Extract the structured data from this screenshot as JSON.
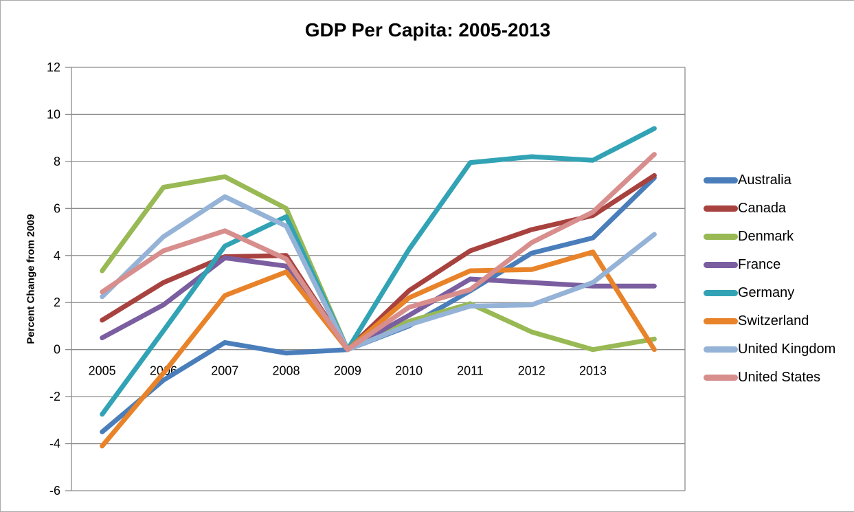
{
  "title": "GDP Per Capita: 2005-2013",
  "y_axis_title": "Percent Change from 2009",
  "chart_data": {
    "type": "line",
    "title": "GDP Per Capita: 2005-2013",
    "xlabel": "",
    "ylabel": "Percent Change from 2009",
    "categories": [
      "2005",
      "2006",
      "2007",
      "2008",
      "2009",
      "2010",
      "2011",
      "2012",
      "2013",
      ""
    ],
    "ylim": [
      -6,
      12
    ],
    "ytick_step": 2,
    "grid": true,
    "legend_position": "right",
    "baseline_year": "2009",
    "series": [
      {
        "name": "Australia",
        "color": "#4A7EBB",
        "values": [
          -3.5,
          -1.3,
          0.3,
          -0.15,
          0,
          1.0,
          2.5,
          4.1,
          4.75,
          7.3
        ]
      },
      {
        "name": "Canada",
        "color": "#A8423F",
        "values": [
          1.25,
          2.85,
          3.95,
          4.0,
          0,
          2.5,
          4.2,
          5.1,
          5.7,
          7.4
        ]
      },
      {
        "name": "Denmark",
        "color": "#98B954",
        "values": [
          3.35,
          6.9,
          7.35,
          6.0,
          0,
          1.2,
          1.95,
          0.75,
          0.0,
          0.45
        ]
      },
      {
        "name": "France",
        "color": "#7A5EA0",
        "values": [
          0.5,
          1.9,
          3.9,
          3.55,
          0,
          1.45,
          3.0,
          2.85,
          2.7,
          2.7
        ]
      },
      {
        "name": "Germany",
        "color": "#31A3B5",
        "values": [
          -2.75,
          0.8,
          4.4,
          5.65,
          0,
          4.25,
          7.95,
          8.2,
          8.05,
          9.4
        ]
      },
      {
        "name": "Switzerland",
        "color": "#E8832A",
        "values": [
          -4.1,
          -1.0,
          2.3,
          3.3,
          0,
          2.2,
          3.35,
          3.4,
          4.15,
          0.0
        ]
      },
      {
        "name": "United Kingdom",
        "color": "#95B3D7",
        "values": [
          2.25,
          4.8,
          6.5,
          5.25,
          0,
          1.05,
          1.85,
          1.9,
          2.85,
          4.9
        ]
      },
      {
        "name": "United States",
        "color": "#D78E8C",
        "values": [
          2.45,
          4.2,
          5.05,
          3.85,
          0,
          1.8,
          2.55,
          4.55,
          5.85,
          8.3
        ]
      }
    ]
  }
}
